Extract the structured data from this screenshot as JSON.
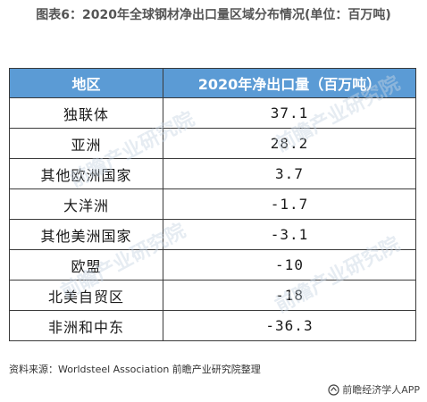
{
  "title": "图表6：2020年全球钢材净出口量区域分布情况(单位：百万吨)",
  "table": {
    "headers": [
      "地区",
      "2020年净出口量（百万吨）"
    ],
    "rows": [
      {
        "region": "独联体",
        "value": "37.1"
      },
      {
        "region": "亚洲",
        "value": "28.2"
      },
      {
        "region": "其他欧洲国家",
        "value": "3.7"
      },
      {
        "region": "大洋洲",
        "value": "-1.7"
      },
      {
        "region": "其他美洲国家",
        "value": "-3.1"
      },
      {
        "region": "欧盟",
        "value": "-10"
      },
      {
        "region": "北美自贸区",
        "value": "-18"
      },
      {
        "region": "非洲和中东",
        "value": "-36.3"
      }
    ]
  },
  "watermark": "前瞻产业研究院",
  "source": "资料来源：Worldsteel Association 前瞻产业研究院整理",
  "brand": {
    "icon": "qianzhan-logo-icon",
    "text": "前瞻经济学人APP"
  },
  "colors": {
    "header_bg": "#5b9bd5",
    "header_text": "#ffffff",
    "border": "#3a3a3a"
  }
}
